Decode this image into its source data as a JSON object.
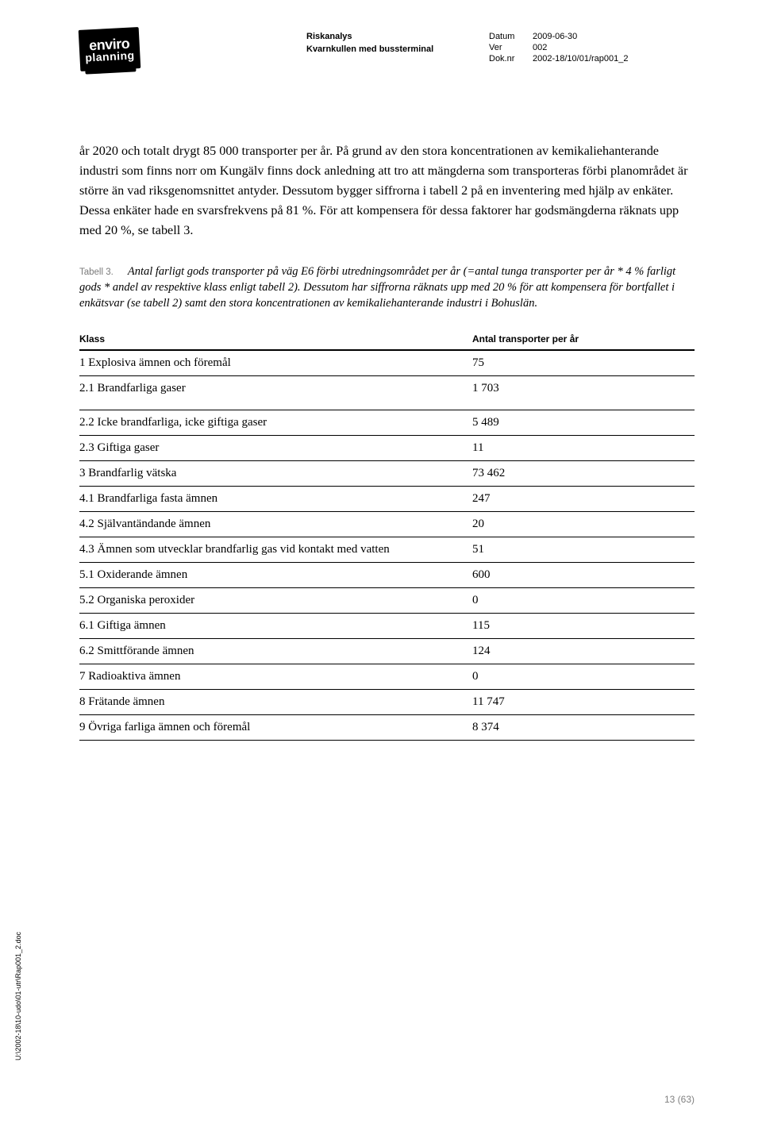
{
  "header": {
    "logo": {
      "line1": "enviro",
      "line2": "planning"
    },
    "title": "Riskanalys",
    "subtitle": "Kvarnkullen med bussterminal",
    "meta": {
      "datum_label": "Datum",
      "datum_value": "2009-06-30",
      "ver_label": "Ver",
      "ver_value": "002",
      "doknr_label": "Dok.nr",
      "doknr_value": "2002-18/10/01/rap001_2"
    }
  },
  "body": {
    "p1": "år 2020 och totalt drygt 85 000 transporter per år. På grund av den stora koncentrationen av kemikaliehanterande industri som finns norr om Kungälv finns dock anledning att tro att mängderna som transporteras förbi planområdet är större än vad riksgenomsnittet antyder. Dessutom bygger siffrorna i tabell 2 på en inventering med hjälp av enkäter. Dessa enkäter hade en svarsfrekvens på 81 %. För att kompensera för dessa faktorer har godsmängderna räknats upp med 20 %, se tabell 3."
  },
  "table_caption": {
    "label": "Tabell 3.",
    "text": "Antal farligt gods transporter på väg E6 förbi utredningsområdet per år (=antal tunga transporter per år * 4 % farligt gods * andel av respektive klass enligt tabell 2). Dessutom har siffrorna räknats upp med 20 % för att kompensera för bortfallet i enkätsvar (se tabell 2) samt den stora koncentrationen av kemikaliehanterande industri i Bohuslän."
  },
  "table": {
    "headers": {
      "klass": "Klass",
      "value": "Antal transporter per år"
    },
    "rows": [
      {
        "klass": "1 Explosiva ämnen och föremål",
        "value": "75"
      },
      {
        "klass": "2.1 Brandfarliga gaser",
        "value": "1 703"
      },
      {
        "klass": "2.2 Icke brandfarliga, icke giftiga gaser",
        "value": "5 489"
      },
      {
        "klass": "2.3 Giftiga gaser",
        "value": "11"
      },
      {
        "klass": "3 Brandfarlig vätska",
        "value": "73 462"
      },
      {
        "klass": "4.1 Brandfarliga fasta ämnen",
        "value": "247"
      },
      {
        "klass": "4.2 Självantändande ämnen",
        "value": "20"
      },
      {
        "klass": "4.3 Ämnen som utvecklar brandfarlig gas vid kontakt med vatten",
        "value": "51"
      },
      {
        "klass": "5.1 Oxiderande ämnen",
        "value": "600"
      },
      {
        "klass": "5.2 Organiska peroxider",
        "value": "0"
      },
      {
        "klass": "6.1 Giftiga ämnen",
        "value": "115"
      },
      {
        "klass": "6.2 Smittförande ämnen",
        "value": "124"
      },
      {
        "klass": "7 Radioaktiva ämnen",
        "value": "0"
      },
      {
        "klass": "8 Frätande ämnen",
        "value": "11 747"
      },
      {
        "klass": "9 Övriga farliga ämnen och föremål",
        "value": "8 374"
      }
    ]
  },
  "footer": {
    "path": "U:\\2002-18\\10-udo\\01-utr\\Rap001_2.doc",
    "page_number": "13 (63)"
  }
}
